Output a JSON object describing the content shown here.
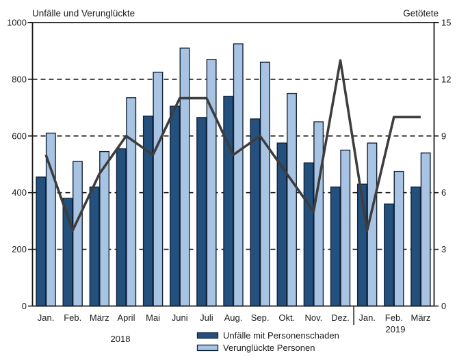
{
  "chart_data": {
    "type": "bar",
    "title": "",
    "categories": [
      "Jan.",
      "Feb.",
      "März",
      "April",
      "Mai",
      "Juni",
      "Juli",
      "Aug.",
      "Sep.",
      "Okt.",
      "Nov.",
      "Dez.",
      "Jan.",
      "Feb.",
      "März"
    ],
    "year_groups": [
      {
        "label": "2018",
        "months": 12
      },
      {
        "label": "2019",
        "months": 3
      }
    ],
    "series": [
      {
        "name": "Unfälle mit Personenschaden",
        "type": "bar",
        "axis": "left",
        "color": "#24507e",
        "values": [
          455,
          380,
          420,
          555,
          670,
          705,
          665,
          740,
          660,
          575,
          505,
          420,
          430,
          360,
          420
        ]
      },
      {
        "name": "Verunglückte Personen",
        "type": "bar",
        "axis": "left",
        "color": "#a9c4e2",
        "values": [
          610,
          510,
          545,
          735,
          825,
          910,
          870,
          925,
          860,
          750,
          650,
          550,
          575,
          475,
          540
        ]
      },
      {
        "name": "Getötete",
        "type": "line",
        "axis": "right",
        "color": "#3d3d3d",
        "values": [
          8,
          4,
          7,
          9,
          8,
          11,
          11,
          8,
          9,
          7,
          5,
          13,
          4,
          10,
          10
        ]
      }
    ],
    "left_axis": {
      "label": "Unfälle und Verunglückte",
      "min": 0,
      "max": 1000,
      "step": 200,
      "ticks": [
        "0",
        "200",
        "400",
        "600",
        "800",
        "1000"
      ]
    },
    "right_axis": {
      "label": "Getötete",
      "min": 0,
      "max": 15,
      "step": 3,
      "ticks": [
        "0",
        "3",
        "6",
        "9",
        "12",
        "15"
      ]
    },
    "grid": "horizontal dashed at each step, solid top border",
    "legend_position": "bottom-center"
  },
  "legend": [
    {
      "label": "Unfälle mit Personenschaden",
      "color": "#24507e"
    },
    {
      "label": "Verunglückte Personen",
      "color": "#a9c4e2"
    }
  ],
  "colors": {
    "bar_dark": "#24507e",
    "bar_light": "#a9c4e2",
    "bar_border": "#10233c",
    "line": "#3d3d3d",
    "axis": "#1a1a1a",
    "text": "#1a1a1a",
    "background": "#ffffff"
  }
}
